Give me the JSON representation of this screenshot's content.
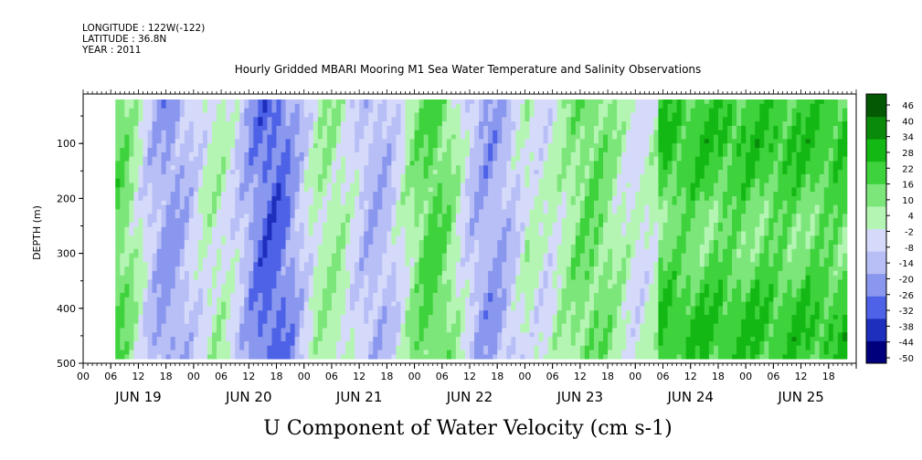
{
  "header": {
    "longitude": "LONGITUDE : 122W(-122)",
    "latitude": "LATITUDE : 36.8N",
    "year": "YEAR : 2011"
  },
  "chart_data": {
    "type": "heatmap",
    "title": "Hourly Gridded MBARI Mooring M1 Sea Water Temperature and Salinity Observations",
    "xlabel": "U Component of Water Velocity (cm s-1)",
    "ylabel": "DEPTH (m)",
    "y_axis": {
      "ticks": [
        100,
        200,
        300,
        400,
        500
      ],
      "range": [
        500,
        10
      ],
      "inverted": true
    },
    "x_axis": {
      "hour_ticks": [
        "00",
        "06",
        "12",
        "18",
        "00",
        "06",
        "12",
        "18",
        "00",
        "06",
        "12",
        "18",
        "00",
        "06",
        "12",
        "18",
        "00",
        "06",
        "12",
        "18",
        "00",
        "06",
        "12",
        "18",
        "00",
        "06",
        "12",
        "18"
      ],
      "day_labels": [
        "JUN 19",
        "JUN 20",
        "JUN 21",
        "JUN 22",
        "JUN 23",
        "JUN 24",
        "JUN 25"
      ],
      "range_hours_from_jun19": [
        0,
        168
      ]
    },
    "colorbar": {
      "labels": [
        "46",
        "40",
        "34",
        "28",
        "22",
        "16",
        "10",
        "4",
        "-2",
        "-8",
        "-14",
        "-20",
        "-26",
        "-32",
        "-38",
        "-44",
        "-50"
      ],
      "range": [
        -50,
        49
      ],
      "colors_low_to_high": [
        "#00007c",
        "#1e2fbd",
        "#4d62e6",
        "#8a97ee",
        "#b8bff6",
        "#d6dafa",
        "#b5f5b3",
        "#7de67b",
        "#3ed23c",
        "#14b814",
        "#0a8a0a",
        "#045a04"
      ]
    },
    "data_summary": {
      "time_extent_hours": [
        7,
        166
      ],
      "depth_extent_m": [
        20,
        485
      ],
      "pattern": [
        {
          "from_hour": 7,
          "to_hour": 96,
          "u_range": [
            -30,
            15
          ],
          "note": "alternating bands"
        },
        {
          "from_hour": 96,
          "to_hour": 125,
          "u_range": [
            0,
            20
          ],
          "note": "mostly positive"
        },
        {
          "from_hour": 125,
          "to_hour": 166,
          "u_range": [
            10,
            30
          ],
          "note": "positive"
        }
      ]
    }
  }
}
